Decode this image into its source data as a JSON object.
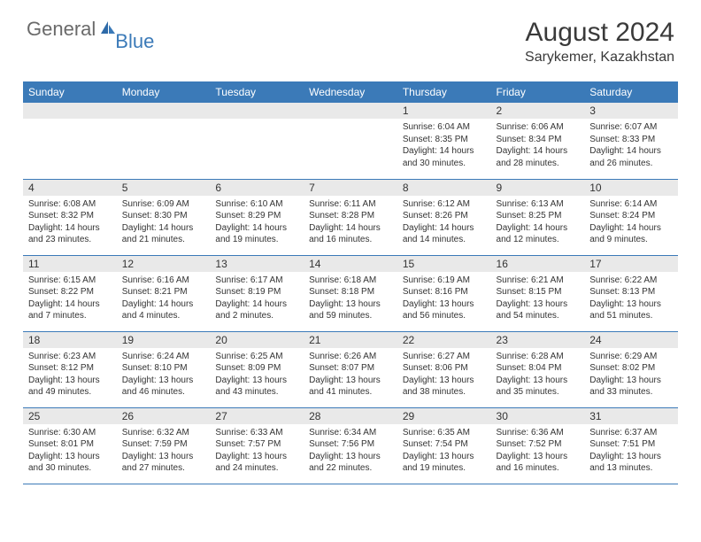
{
  "logo": {
    "general": "General",
    "blue": "Blue"
  },
  "title": {
    "month": "August 2024",
    "location": "Sarykemer, Kazakhstan"
  },
  "colors": {
    "header_bg": "#3b7ab8",
    "daynum_bg": "#e9e9e9",
    "rule": "#3b7ab8"
  },
  "weekdays": [
    "Sunday",
    "Monday",
    "Tuesday",
    "Wednesday",
    "Thursday",
    "Friday",
    "Saturday"
  ],
  "weeks": [
    [
      {
        "empty": true
      },
      {
        "empty": true
      },
      {
        "empty": true
      },
      {
        "empty": true
      },
      {
        "day": "1",
        "sunrise": "Sunrise: 6:04 AM",
        "sunset": "Sunset: 8:35 PM",
        "daylight": "Daylight: 14 hours and 30 minutes."
      },
      {
        "day": "2",
        "sunrise": "Sunrise: 6:06 AM",
        "sunset": "Sunset: 8:34 PM",
        "daylight": "Daylight: 14 hours and 28 minutes."
      },
      {
        "day": "3",
        "sunrise": "Sunrise: 6:07 AM",
        "sunset": "Sunset: 8:33 PM",
        "daylight": "Daylight: 14 hours and 26 minutes."
      }
    ],
    [
      {
        "day": "4",
        "sunrise": "Sunrise: 6:08 AM",
        "sunset": "Sunset: 8:32 PM",
        "daylight": "Daylight: 14 hours and 23 minutes."
      },
      {
        "day": "5",
        "sunrise": "Sunrise: 6:09 AM",
        "sunset": "Sunset: 8:30 PM",
        "daylight": "Daylight: 14 hours and 21 minutes."
      },
      {
        "day": "6",
        "sunrise": "Sunrise: 6:10 AM",
        "sunset": "Sunset: 8:29 PM",
        "daylight": "Daylight: 14 hours and 19 minutes."
      },
      {
        "day": "7",
        "sunrise": "Sunrise: 6:11 AM",
        "sunset": "Sunset: 8:28 PM",
        "daylight": "Daylight: 14 hours and 16 minutes."
      },
      {
        "day": "8",
        "sunrise": "Sunrise: 6:12 AM",
        "sunset": "Sunset: 8:26 PM",
        "daylight": "Daylight: 14 hours and 14 minutes."
      },
      {
        "day": "9",
        "sunrise": "Sunrise: 6:13 AM",
        "sunset": "Sunset: 8:25 PM",
        "daylight": "Daylight: 14 hours and 12 minutes."
      },
      {
        "day": "10",
        "sunrise": "Sunrise: 6:14 AM",
        "sunset": "Sunset: 8:24 PM",
        "daylight": "Daylight: 14 hours and 9 minutes."
      }
    ],
    [
      {
        "day": "11",
        "sunrise": "Sunrise: 6:15 AM",
        "sunset": "Sunset: 8:22 PM",
        "daylight": "Daylight: 14 hours and 7 minutes."
      },
      {
        "day": "12",
        "sunrise": "Sunrise: 6:16 AM",
        "sunset": "Sunset: 8:21 PM",
        "daylight": "Daylight: 14 hours and 4 minutes."
      },
      {
        "day": "13",
        "sunrise": "Sunrise: 6:17 AM",
        "sunset": "Sunset: 8:19 PM",
        "daylight": "Daylight: 14 hours and 2 minutes."
      },
      {
        "day": "14",
        "sunrise": "Sunrise: 6:18 AM",
        "sunset": "Sunset: 8:18 PM",
        "daylight": "Daylight: 13 hours and 59 minutes."
      },
      {
        "day": "15",
        "sunrise": "Sunrise: 6:19 AM",
        "sunset": "Sunset: 8:16 PM",
        "daylight": "Daylight: 13 hours and 56 minutes."
      },
      {
        "day": "16",
        "sunrise": "Sunrise: 6:21 AM",
        "sunset": "Sunset: 8:15 PM",
        "daylight": "Daylight: 13 hours and 54 minutes."
      },
      {
        "day": "17",
        "sunrise": "Sunrise: 6:22 AM",
        "sunset": "Sunset: 8:13 PM",
        "daylight": "Daylight: 13 hours and 51 minutes."
      }
    ],
    [
      {
        "day": "18",
        "sunrise": "Sunrise: 6:23 AM",
        "sunset": "Sunset: 8:12 PM",
        "daylight": "Daylight: 13 hours and 49 minutes."
      },
      {
        "day": "19",
        "sunrise": "Sunrise: 6:24 AM",
        "sunset": "Sunset: 8:10 PM",
        "daylight": "Daylight: 13 hours and 46 minutes."
      },
      {
        "day": "20",
        "sunrise": "Sunrise: 6:25 AM",
        "sunset": "Sunset: 8:09 PM",
        "daylight": "Daylight: 13 hours and 43 minutes."
      },
      {
        "day": "21",
        "sunrise": "Sunrise: 6:26 AM",
        "sunset": "Sunset: 8:07 PM",
        "daylight": "Daylight: 13 hours and 41 minutes."
      },
      {
        "day": "22",
        "sunrise": "Sunrise: 6:27 AM",
        "sunset": "Sunset: 8:06 PM",
        "daylight": "Daylight: 13 hours and 38 minutes."
      },
      {
        "day": "23",
        "sunrise": "Sunrise: 6:28 AM",
        "sunset": "Sunset: 8:04 PM",
        "daylight": "Daylight: 13 hours and 35 minutes."
      },
      {
        "day": "24",
        "sunrise": "Sunrise: 6:29 AM",
        "sunset": "Sunset: 8:02 PM",
        "daylight": "Daylight: 13 hours and 33 minutes."
      }
    ],
    [
      {
        "day": "25",
        "sunrise": "Sunrise: 6:30 AM",
        "sunset": "Sunset: 8:01 PM",
        "daylight": "Daylight: 13 hours and 30 minutes."
      },
      {
        "day": "26",
        "sunrise": "Sunrise: 6:32 AM",
        "sunset": "Sunset: 7:59 PM",
        "daylight": "Daylight: 13 hours and 27 minutes."
      },
      {
        "day": "27",
        "sunrise": "Sunrise: 6:33 AM",
        "sunset": "Sunset: 7:57 PM",
        "daylight": "Daylight: 13 hours and 24 minutes."
      },
      {
        "day": "28",
        "sunrise": "Sunrise: 6:34 AM",
        "sunset": "Sunset: 7:56 PM",
        "daylight": "Daylight: 13 hours and 22 minutes."
      },
      {
        "day": "29",
        "sunrise": "Sunrise: 6:35 AM",
        "sunset": "Sunset: 7:54 PM",
        "daylight": "Daylight: 13 hours and 19 minutes."
      },
      {
        "day": "30",
        "sunrise": "Sunrise: 6:36 AM",
        "sunset": "Sunset: 7:52 PM",
        "daylight": "Daylight: 13 hours and 16 minutes."
      },
      {
        "day": "31",
        "sunrise": "Sunrise: 6:37 AM",
        "sunset": "Sunset: 7:51 PM",
        "daylight": "Daylight: 13 hours and 13 minutes."
      }
    ]
  ]
}
